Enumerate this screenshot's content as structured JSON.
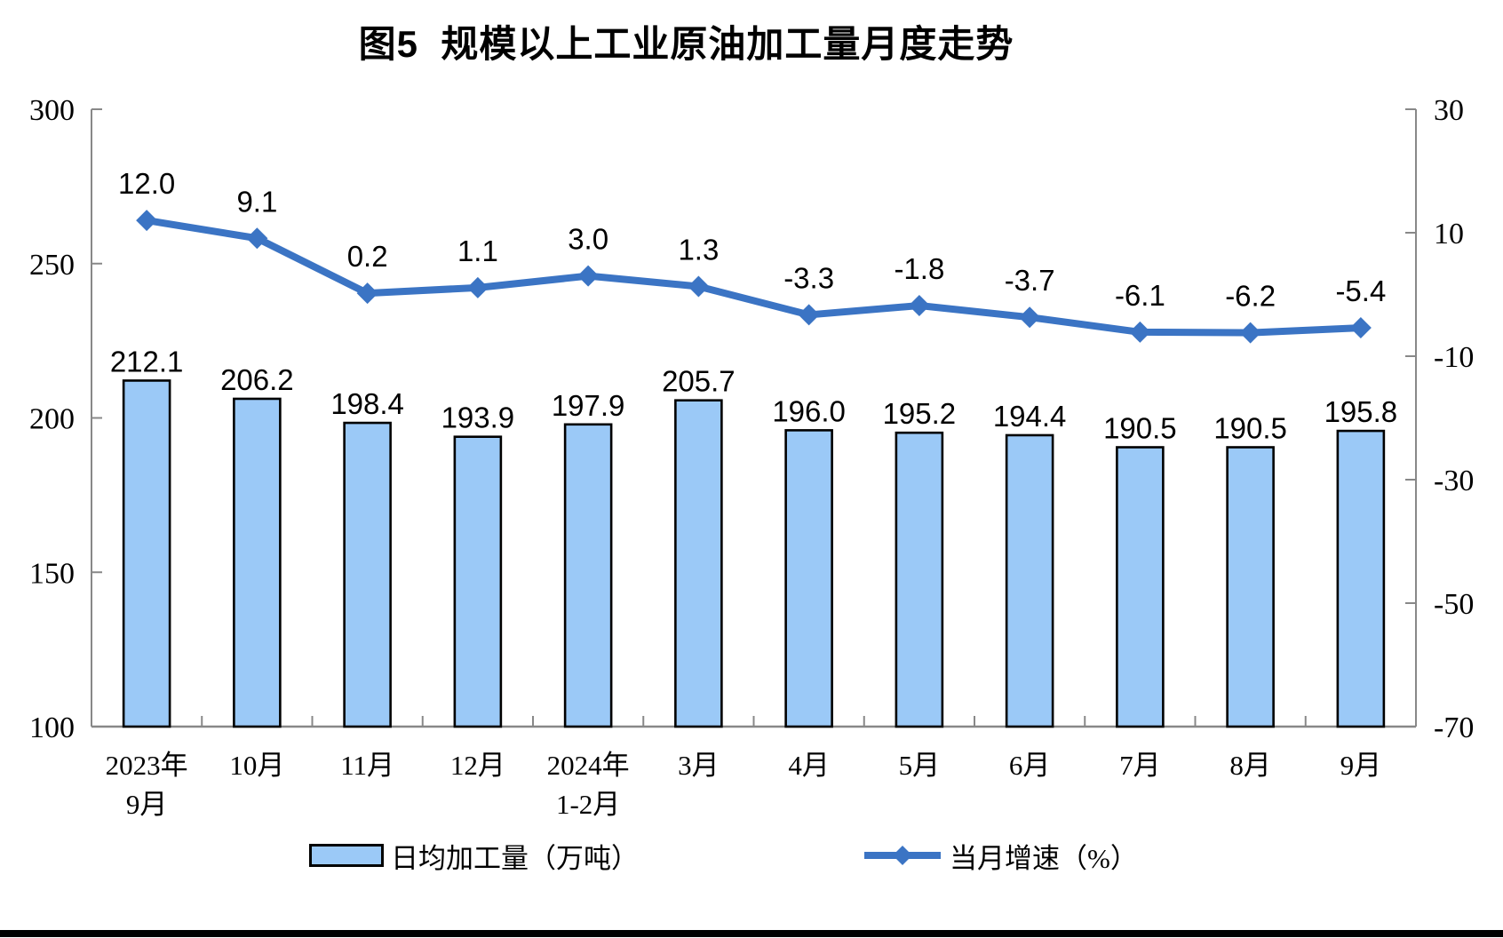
{
  "title": "图5  规模以上工业原油加工量月度走势",
  "legend": {
    "bar_label": "日均加工量（万吨）",
    "line_label": "当月增速（%）"
  },
  "colors": {
    "bar_fill": "#9BC9F7",
    "bar_border": "#000000",
    "line": "#3B74C4",
    "axis": "#888888",
    "label_text": "#000000"
  },
  "chart_data": {
    "type": "bar+line",
    "title": "图5  规模以上工业原油加工量月度走势",
    "categories": [
      "2023年\n9月",
      "10月",
      "11月",
      "12月",
      "2024年\n1-2月",
      "3月",
      "4月",
      "5月",
      "6月",
      "7月",
      "8月",
      "9月"
    ],
    "series": [
      {
        "name": "日均加工量（万吨）",
        "type": "bar",
        "axis": "left",
        "values": [
          212.1,
          206.2,
          198.4,
          193.9,
          197.9,
          205.7,
          196.0,
          195.2,
          194.4,
          190.5,
          190.5,
          195.8
        ]
      },
      {
        "name": "当月增速（%）",
        "type": "line",
        "axis": "right",
        "values": [
          12.0,
          9.1,
          0.2,
          1.1,
          3.0,
          1.3,
          -3.3,
          -1.8,
          -3.7,
          -6.1,
          -6.2,
          -5.4
        ]
      }
    ],
    "left_axis": {
      "min": 100,
      "max": 300,
      "ticks": [
        300,
        250,
        200,
        150,
        100
      ]
    },
    "right_axis": {
      "min": -70,
      "max": 30,
      "ticks": [
        30,
        10,
        -10,
        -30,
        -50,
        -70
      ]
    },
    "grid": false,
    "legend_position": "bottom"
  }
}
